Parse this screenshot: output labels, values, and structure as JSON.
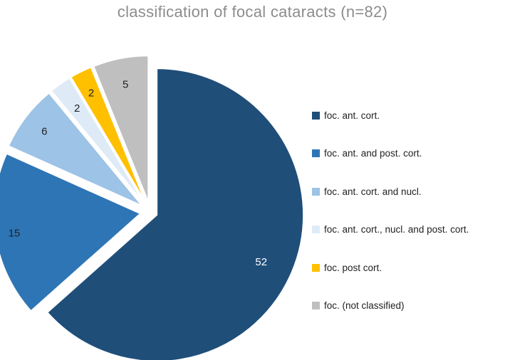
{
  "chart_data": {
    "type": "pie",
    "title": "classification of focal cataracts (n=82)",
    "slices": [
      {
        "label": "foc. ant. cort.",
        "value": 52,
        "color": "#1f4e79",
        "label_color": "#ffffff"
      },
      {
        "label": "foc. ant. and post. cort.",
        "value": 15,
        "color": "#2e75b6",
        "label_color": "#222222"
      },
      {
        "label": "foc. ant. cort. and nucl.",
        "value": 6,
        "color": "#9dc3e6",
        "label_color": "#222222"
      },
      {
        "label": "foc. ant. cort., nucl. and post. cort.",
        "value": 2,
        "color": "#deebf7",
        "label_color": "#222222"
      },
      {
        "label": "foc. post cort.",
        "value": 2,
        "color": "#ffc000",
        "label_color": "#222222"
      },
      {
        "label": "foc. (not classified)",
        "value": 5,
        "color": "#bfbfbf",
        "label_color": "#222222"
      }
    ],
    "legend_position": "right"
  }
}
